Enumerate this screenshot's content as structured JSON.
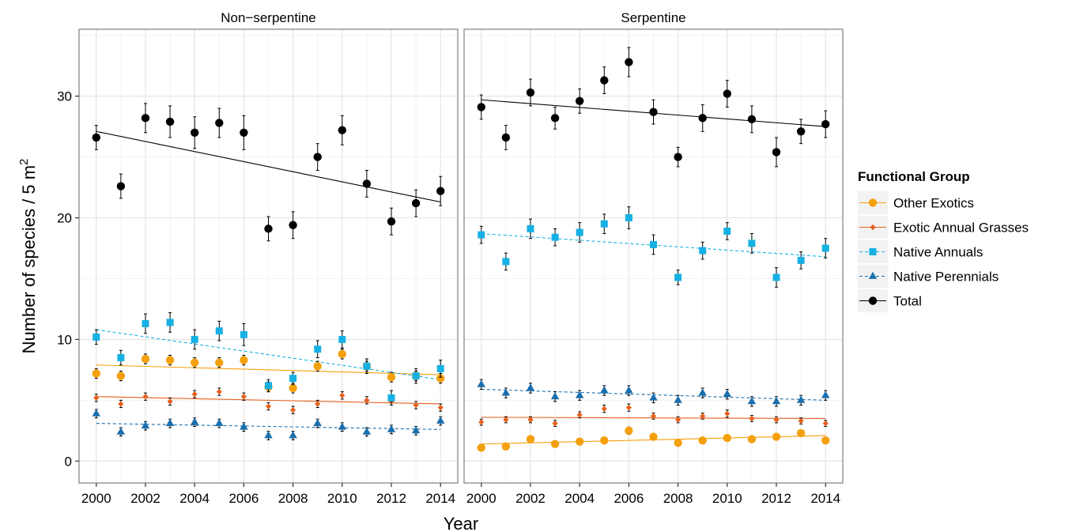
{
  "chart_data": {
    "type": "scatter",
    "xlabel": "Year",
    "ylabel_main": "Number of species / 5 m",
    "ylabel_sup": "2",
    "xlim": [
      1999.3,
      2014.7
    ],
    "ylim": [
      -1.8,
      35.5
    ],
    "xticks": [
      2000,
      2002,
      2004,
      2006,
      2008,
      2010,
      2012,
      2014
    ],
    "xtick_labels": [
      "2000",
      "2002",
      "2004",
      "2006",
      "2008",
      "2010",
      "2012",
      "2014"
    ],
    "yticks": [
      0,
      10,
      20,
      30
    ],
    "ytick_labels": [
      "0",
      "10",
      "20",
      "30"
    ],
    "grid": true,
    "legend": {
      "title": "Functional Group",
      "position": "right",
      "items": [
        "Other Exotics",
        "Exotic Annual Grasses",
        "Native Annuals",
        "Native Perennials",
        "Total"
      ]
    },
    "series_style": {
      "Other Exotics": {
        "color": "#F4A00C",
        "marker": "circle",
        "dash": "solid"
      },
      "Exotic Annual Grasses": {
        "color": "#E5601C",
        "marker": "diamond",
        "dash": "solid"
      },
      "Native Annuals": {
        "color": "#16B1E4",
        "marker": "square",
        "dash": "dashed"
      },
      "Native Perennials": {
        "color": "#1A6FAE",
        "marker": "triangle",
        "dash": "dashed"
      },
      "Total": {
        "color": "#000000",
        "marker": "circle",
        "dash": "solid"
      }
    },
    "x": [
      2000,
      2001,
      2002,
      2003,
      2004,
      2005,
      2006,
      2007,
      2008,
      2009,
      2010,
      2011,
      2012,
      2013,
      2014
    ],
    "panels": [
      {
        "title": "Non−serpentine",
        "series": [
          {
            "name": "Other Exotics",
            "values": [
              7.2,
              7.0,
              8.4,
              8.3,
              8.1,
              8.1,
              8.3,
              6.1,
              6.0,
              7.8,
              8.8,
              7.8,
              6.9,
              7.0,
              6.8
            ],
            "err": [
              0.4,
              0.4,
              0.4,
              0.4,
              0.4,
              0.4,
              0.4,
              0.4,
              0.4,
              0.4,
              0.4,
              0.4,
              0.4,
              0.4,
              0.4
            ],
            "trend": [
              7.9,
              7.1
            ]
          },
          {
            "name": "Exotic Annual Grasses",
            "values": [
              5.2,
              4.7,
              5.3,
              4.9,
              5.5,
              5.7,
              5.3,
              4.5,
              4.2,
              4.7,
              5.4,
              5.0,
              4.9,
              4.6,
              4.4
            ],
            "err": [
              0.3,
              0.3,
              0.3,
              0.3,
              0.3,
              0.3,
              0.3,
              0.3,
              0.3,
              0.3,
              0.3,
              0.3,
              0.3,
              0.3,
              0.3
            ],
            "trend": [
              5.3,
              4.7
            ]
          },
          {
            "name": "Native Annuals",
            "values": [
              10.2,
              8.5,
              11.3,
              11.4,
              10.0,
              10.7,
              10.4,
              6.2,
              6.8,
              9.2,
              10.0,
              7.8,
              5.2,
              7.0,
              7.6
            ],
            "err": [
              0.6,
              0.6,
              0.8,
              0.8,
              0.8,
              0.8,
              0.9,
              0.5,
              0.5,
              0.7,
              0.7,
              0.6,
              0.6,
              0.6,
              0.7
            ],
            "trend": [
              10.8,
              6.7
            ]
          },
          {
            "name": "Native Perennials",
            "values": [
              3.9,
              2.4,
              2.9,
              3.1,
              3.2,
              3.1,
              2.8,
              2.1,
              2.1,
              3.1,
              2.8,
              2.4,
              2.6,
              2.5,
              3.3
            ],
            "err": [
              0.35,
              0.35,
              0.35,
              0.35,
              0.35,
              0.35,
              0.35,
              0.35,
              0.35,
              0.35,
              0.35,
              0.35,
              0.35,
              0.35,
              0.35
            ],
            "trend": [
              3.1,
              2.6
            ]
          },
          {
            "name": "Total",
            "values": [
              26.6,
              22.6,
              28.2,
              27.9,
              27.0,
              27.8,
              27.0,
              19.1,
              19.4,
              25.0,
              27.2,
              22.8,
              19.7,
              21.2,
              22.2
            ],
            "err": [
              1.0,
              1.0,
              1.2,
              1.3,
              1.3,
              1.2,
              1.4,
              1.0,
              1.1,
              1.1,
              1.2,
              1.1,
              1.1,
              1.1,
              1.2
            ],
            "trend": [
              27.1,
              21.3
            ]
          }
        ]
      },
      {
        "title": "Serpentine",
        "series": [
          {
            "name": "Other Exotics",
            "values": [
              1.1,
              1.2,
              1.8,
              1.4,
              1.6,
              1.7,
              2.5,
              2.0,
              1.5,
              1.7,
              1.9,
              1.8,
              2.0,
              2.3,
              1.7
            ],
            "err": [
              0.2,
              0.2,
              0.2,
              0.2,
              0.2,
              0.2,
              0.3,
              0.2,
              0.2,
              0.2,
              0.2,
              0.2,
              0.2,
              0.2,
              0.2
            ],
            "trend": [
              1.4,
              2.1
            ]
          },
          {
            "name": "Exotic Annual Grasses",
            "values": [
              3.2,
              3.4,
              3.4,
              3.1,
              3.8,
              4.3,
              4.4,
              3.7,
              3.4,
              3.7,
              3.9,
              3.5,
              3.4,
              3.3,
              3.1
            ],
            "err": [
              0.25,
              0.25,
              0.25,
              0.25,
              0.25,
              0.3,
              0.3,
              0.25,
              0.25,
              0.25,
              0.3,
              0.25,
              0.25,
              0.25,
              0.25
            ],
            "trend": [
              3.6,
              3.5
            ]
          },
          {
            "name": "Native Annuals",
            "values": [
              18.6,
              16.4,
              19.1,
              18.4,
              18.8,
              19.5,
              20.0,
              17.8,
              15.1,
              17.3,
              18.9,
              17.9,
              15.1,
              16.5,
              17.5
            ],
            "err": [
              0.7,
              0.7,
              0.8,
              0.7,
              0.8,
              0.8,
              0.9,
              0.8,
              0.6,
              0.7,
              0.7,
              0.8,
              0.8,
              0.7,
              0.8
            ],
            "trend": [
              18.7,
              16.8
            ]
          },
          {
            "name": "Native Perennials",
            "values": [
              6.3,
              5.6,
              6.0,
              5.3,
              5.4,
              5.8,
              5.8,
              5.2,
              5.0,
              5.6,
              5.5,
              4.9,
              4.9,
              5.0,
              5.4
            ],
            "err": [
              0.4,
              0.4,
              0.4,
              0.4,
              0.4,
              0.4,
              0.4,
              0.4,
              0.4,
              0.4,
              0.4,
              0.4,
              0.4,
              0.4,
              0.4
            ],
            "trend": [
              5.9,
              5.0
            ]
          },
          {
            "name": "Total",
            "values": [
              29.1,
              26.6,
              30.3,
              28.2,
              29.6,
              31.3,
              32.8,
              28.7,
              25.0,
              28.2,
              30.2,
              28.1,
              25.4,
              27.1,
              27.7
            ],
            "err": [
              1.0,
              1.0,
              1.1,
              0.9,
              1.0,
              1.1,
              1.2,
              1.0,
              0.8,
              1.1,
              1.1,
              1.1,
              1.2,
              1.0,
              1.1
            ],
            "trend": [
              29.7,
              27.5
            ]
          }
        ]
      }
    ]
  }
}
